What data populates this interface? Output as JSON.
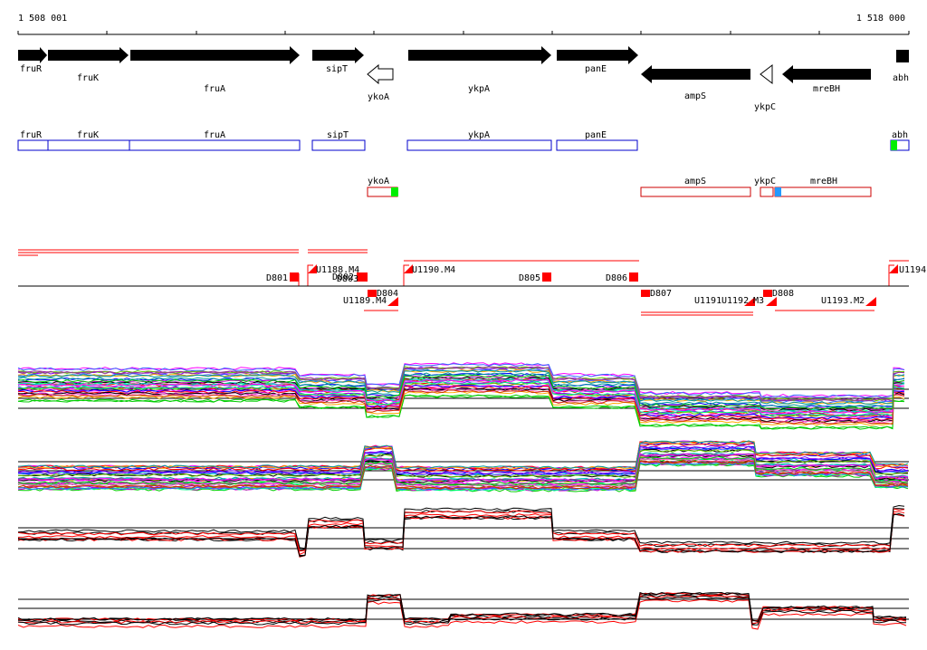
{
  "ruler": {
    "start_label": "1 508 001",
    "end_label": "1 518 000"
  },
  "genes": [
    {
      "name": "fruR"
    },
    {
      "name": "fruK"
    },
    {
      "name": "fruA"
    },
    {
      "name": "sipT"
    },
    {
      "name": "ykoA"
    },
    {
      "name": "ykpA"
    },
    {
      "name": "panE"
    },
    {
      "name": "ampS"
    },
    {
      "name": "ykpC"
    },
    {
      "name": "mreBH"
    },
    {
      "name": "abh"
    }
  ],
  "transcripts_top": [
    {
      "name": "fruR"
    },
    {
      "name": "fruK"
    },
    {
      "name": "fruA"
    },
    {
      "name": "sipT"
    },
    {
      "name": "ykpA"
    },
    {
      "name": "panE"
    },
    {
      "name": "abh"
    }
  ],
  "transcripts_bottom": [
    {
      "name": "ykoA"
    },
    {
      "name": "ampS"
    },
    {
      "name": "ykpC"
    },
    {
      "name": "mreBH"
    }
  ],
  "regulation_labels": [
    {
      "text": "D801"
    },
    {
      "text": "U1188.M4"
    },
    {
      "text": "D802"
    },
    {
      "text": "D803"
    },
    {
      "text": "U1190.M4"
    },
    {
      "text": "D805"
    },
    {
      "text": "D806"
    },
    {
      "text": "U1194."
    },
    {
      "text": "U1189.M4"
    },
    {
      "text": "D804"
    },
    {
      "text": "D807"
    },
    {
      "text": "U1191"
    },
    {
      "text": "U1192"
    },
    {
      "text": "M3"
    },
    {
      "text": "D808"
    },
    {
      "text": "U1193.M2"
    }
  ],
  "colors": {
    "forward_transcript": "#0000cc",
    "reverse_transcript": "#cc0000",
    "signal_red": "#ff0000",
    "green_marker": "#00ee00",
    "blue_marker": "#2299ff"
  }
}
